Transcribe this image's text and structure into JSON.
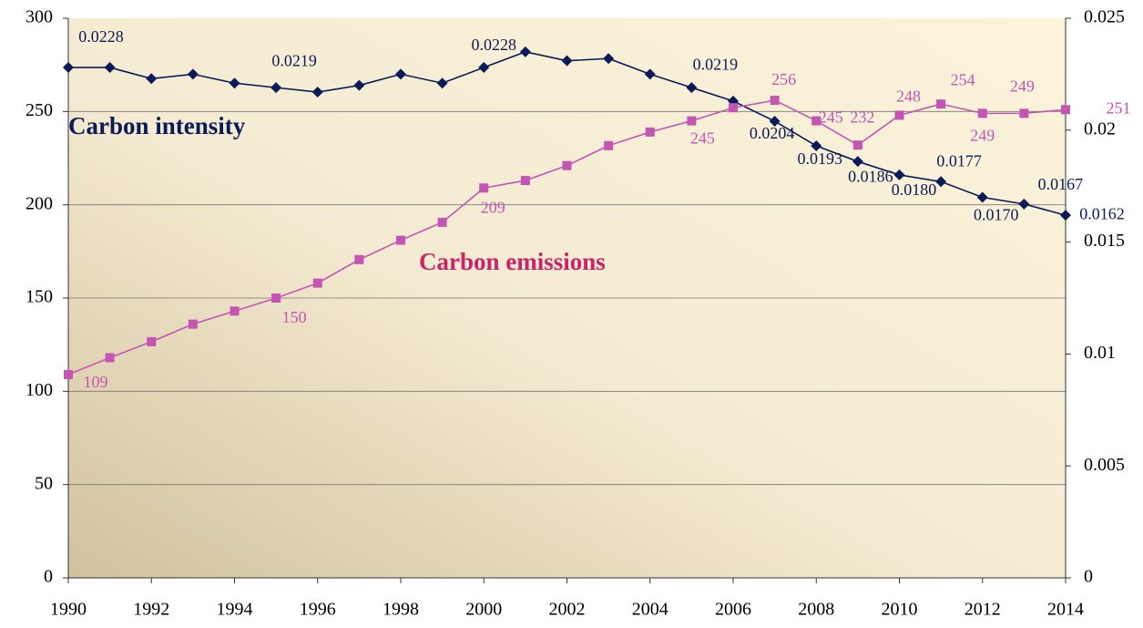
{
  "chart_data": {
    "type": "line",
    "x": [
      1990,
      1991,
      1992,
      1993,
      1994,
      1995,
      1996,
      1997,
      1998,
      1999,
      2000,
      2001,
      2002,
      2003,
      2004,
      2005,
      2006,
      2007,
      2008,
      2009,
      2010,
      2011,
      2012,
      2013,
      2014
    ],
    "xlim": [
      1990,
      2014
    ],
    "xticks": [
      1990,
      1992,
      1994,
      1996,
      1998,
      2000,
      2002,
      2004,
      2006,
      2008,
      2010,
      2012,
      2014
    ],
    "ylim": [
      0,
      300
    ],
    "yticks": [
      0,
      50,
      100,
      150,
      200,
      250,
      300
    ],
    "y2lim": [
      0,
      0.025
    ],
    "y2ticks": [
      0,
      0.005,
      0.01,
      0.015,
      0.02,
      0.025
    ],
    "grid": true,
    "annotations": [
      "Carbon intensity",
      "Carbon emissions"
    ],
    "series": [
      {
        "name": "Carbon intensity",
        "color": "#0d1a5a",
        "axis": "y2",
        "marker": "diamond",
        "values": [
          0.0228,
          0.0228,
          0.0223,
          0.0225,
          0.0221,
          0.0219,
          0.0217,
          0.022,
          0.0225,
          0.0221,
          0.0228,
          0.0235,
          0.0231,
          0.0232,
          0.0225,
          0.0219,
          0.0213,
          0.0204,
          0.0193,
          0.0186,
          0.018,
          0.0177,
          0.017,
          0.0167,
          0.0162
        ],
        "value_labels": [
          "0.0228",
          null,
          null,
          null,
          null,
          "0.0219",
          null,
          null,
          null,
          null,
          "0.0228",
          null,
          null,
          null,
          null,
          "0.0219",
          null,
          "0.0204",
          "0.0193",
          "0.0186",
          "0.0180",
          "0.0177",
          "0.0170",
          "0.0167",
          "0.0162"
        ]
      },
      {
        "name": "Carbon emissions",
        "color": "#c455b4",
        "axis": "y",
        "marker": "square",
        "values": [
          109,
          118,
          126.6,
          136,
          143,
          150,
          158,
          170.6,
          181,
          190.6,
          209,
          213,
          221,
          231.7,
          239,
          245,
          252,
          256,
          245,
          232,
          248,
          254,
          249,
          249,
          251
        ],
        "value_labels": [
          "109",
          null,
          null,
          null,
          null,
          "150",
          null,
          null,
          null,
          null,
          "209",
          null,
          null,
          null,
          null,
          "245",
          null,
          "256",
          "245",
          "232",
          "248",
          "254",
          "249",
          "249",
          "251"
        ]
      }
    ]
  }
}
